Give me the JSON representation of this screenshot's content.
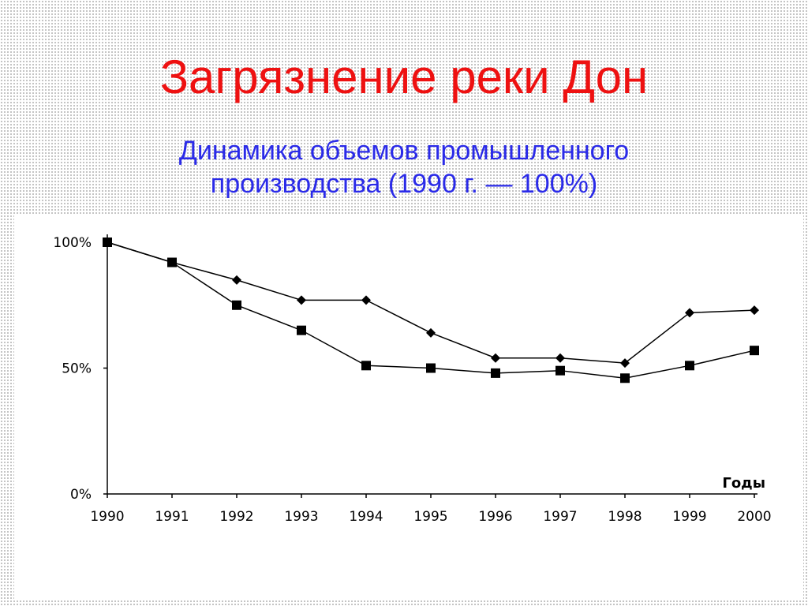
{
  "slide": {
    "title": "Загрязнение реки Дон",
    "subtitle_line1": "Динамика объемов промышленного",
    "subtitle_line2": "производства (1990 г. — 100%)"
  },
  "chart_data": {
    "type": "line",
    "title": "",
    "xlabel": "Годы",
    "ylabel": "",
    "categories": [
      "1990",
      "1991",
      "1992",
      "1993",
      "1994",
      "1995",
      "1996",
      "1997",
      "1998",
      "1999",
      "2000"
    ],
    "y_ticks": [
      "0%",
      "50%",
      "100%"
    ],
    "ylim": [
      0,
      100
    ],
    "grid": false,
    "series": [
      {
        "marker": "diamond",
        "values": [
          100,
          92,
          85,
          77,
          77,
          64,
          54,
          54,
          52,
          72,
          73
        ]
      },
      {
        "marker": "square",
        "values": [
          100,
          92,
          75,
          65,
          51,
          50,
          48,
          49,
          46,
          51,
          57
        ]
      }
    ],
    "colors": {
      "line": "#000000",
      "axis": "#000000",
      "title": "#ee1111",
      "subtitle": "#2a2ae8"
    }
  }
}
